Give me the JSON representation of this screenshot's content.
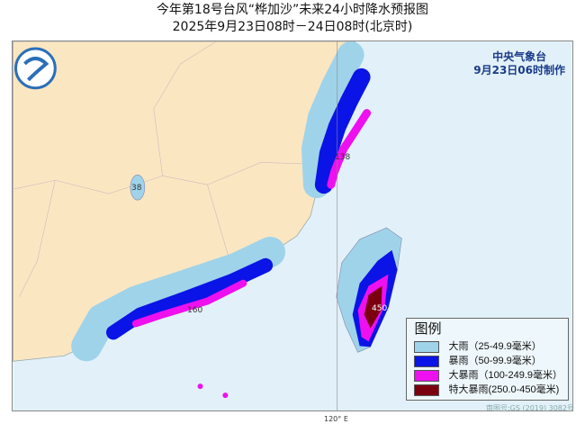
{
  "title": "今年第18号台风“桦加沙”未来24小时降水预报图",
  "subtitle": "2025年9月23日08时－24日08时(北京时)",
  "agency": {
    "name": "中央气象台",
    "issued": "9月23日06时制作"
  },
  "map_labels": {
    "north": "138",
    "lake": "38",
    "south": "160",
    "taiwan": "450",
    "longitude": "120° E"
  },
  "legend": {
    "title": "图例",
    "items": [
      {
        "label": "大雨（25-49.9毫米）",
        "color": "#9fd3ea"
      },
      {
        "label": "暴雨（50-99.9毫米）",
        "color": "#0a14e6"
      },
      {
        "label": "大暴雨（100-249.9毫米）",
        "color": "#ee10ee"
      },
      {
        "label": "特大暴雨(250.0-450毫米)",
        "color": "#7a0010"
      }
    ]
  },
  "approval": "审图号:GS (2019) 3082号",
  "colors": {
    "land": "#fbe6c2",
    "sea": "#e2f1f9"
  }
}
